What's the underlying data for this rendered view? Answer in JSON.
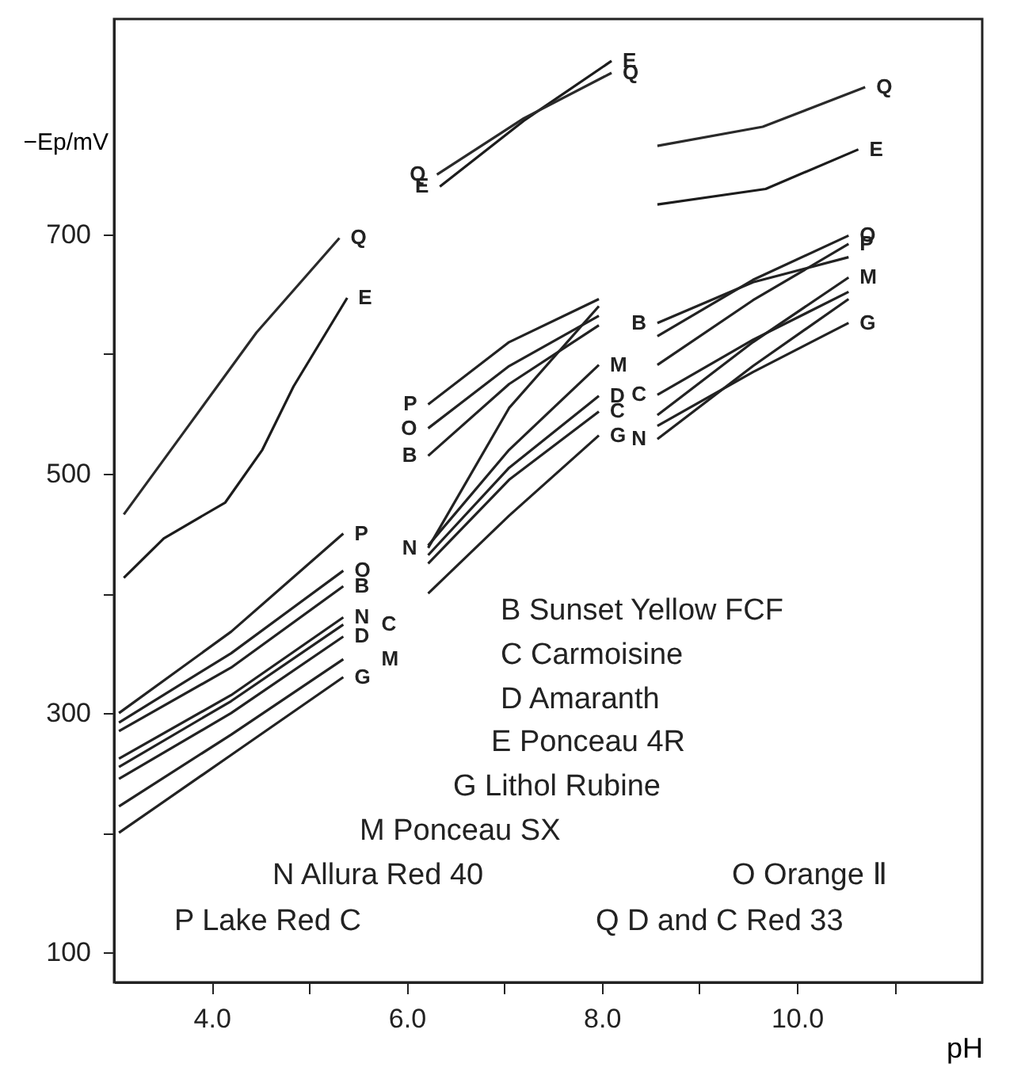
{
  "chart_data": {
    "type": "line",
    "xlabel": "pH",
    "ylabel": "−Ep/mV",
    "x": [
      3.05,
      4.2,
      5.35,
      5.8,
      6.22,
      7.05,
      7.97,
      8.3,
      8.57,
      9.55,
      10.53
    ],
    "series": [
      {
        "name": "B",
        "color": "#222222",
        "values": [
          285,
          338,
          406,
          null,
          515,
          575,
          624,
          null,
          626,
          660,
          681
        ]
      },
      {
        "name": "C",
        "color": "#222222",
        "values": [
          255,
          310,
          374,
          null,
          425,
          495,
          552,
          null,
          566,
          612,
          652
        ]
      },
      {
        "name": "D",
        "color": "#222222",
        "values": [
          245,
          300,
          364,
          null,
          432,
          505,
          565,
          null,
          null,
          null,
          null
        ]
      },
      {
        "name": "E",
        "color": "#1c1c1c",
        "x": [
          3.1,
          3.51,
          4.14,
          4.52,
          4.84,
          5.39,
          5.8,
          6.34,
          7.2,
          8.1,
          8.3,
          8.57,
          9.68,
          10.63
        ],
        "values": [
          413,
          446,
          476,
          520,
          573,
          647,
          null,
          740,
          795,
          845,
          null,
          725,
          738,
          771
        ]
      },
      {
        "name": "G",
        "color": "#222222",
        "values": [
          200,
          265,
          330,
          null,
          400,
          465,
          532,
          null,
          540,
          585,
          626
        ]
      },
      {
        "name": "M",
        "color": "#222222",
        "values": [
          222,
          282,
          345,
          null,
          440,
          520,
          591,
          null,
          549,
          610,
          664
        ]
      },
      {
        "name": "N",
        "color": "#222222",
        "values": [
          262,
          315,
          380,
          null,
          438,
          555,
          640,
          null,
          529,
          590,
          646
        ]
      },
      {
        "name": "O",
        "color": "#222222",
        "values": [
          292,
          350,
          419,
          null,
          538,
          590,
          632,
          null,
          615,
          662,
          699
        ]
      },
      {
        "name": "P",
        "color": "#222222",
        "values": [
          300,
          368,
          450,
          null,
          558,
          610,
          646,
          null,
          591,
          645,
          692
        ]
      },
      {
        "name": "Q",
        "color": "#2a2a2a",
        "x": [
          3.1,
          3.78,
          4.46,
          5.31,
          5.8,
          6.31,
          7.2,
          8.1,
          8.3,
          8.57,
          9.65,
          10.7
        ],
        "values": [
          466,
          542,
          618,
          697,
          null,
          750,
          797,
          835,
          null,
          774,
          790,
          823
        ]
      }
    ],
    "annotations": [
      "B Sunset Yellow FCF",
      "C Carmoisine",
      "D Amaranth",
      "E Ponceau 4R",
      "G Lithol Rubine",
      "M Ponceau SX",
      "N Allura Red 40",
      "O Orange Ⅱ",
      "P Lake Red C",
      "Q D and C Red 33"
    ],
    "xlim": [
      3.0,
      11.9
    ],
    "ylim": [
      75,
      880
    ],
    "xticks": [
      {
        "value": 4,
        "label": "4.0"
      },
      {
        "value": 5,
        "label": null
      },
      {
        "value": 6,
        "label": "6.0"
      },
      {
        "value": 7,
        "label": null
      },
      {
        "value": 8,
        "label": "8.0"
      },
      {
        "value": 9,
        "label": null
      },
      {
        "value": 10,
        "label": "10.0"
      },
      {
        "value": 11,
        "label": null
      }
    ],
    "yticks": [
      100,
      {
        "value": 200,
        "label": null
      },
      300,
      {
        "value": 400,
        "label": null
      },
      500,
      {
        "value": 600,
        "label": null
      },
      700
    ],
    "line_style": "solid"
  }
}
